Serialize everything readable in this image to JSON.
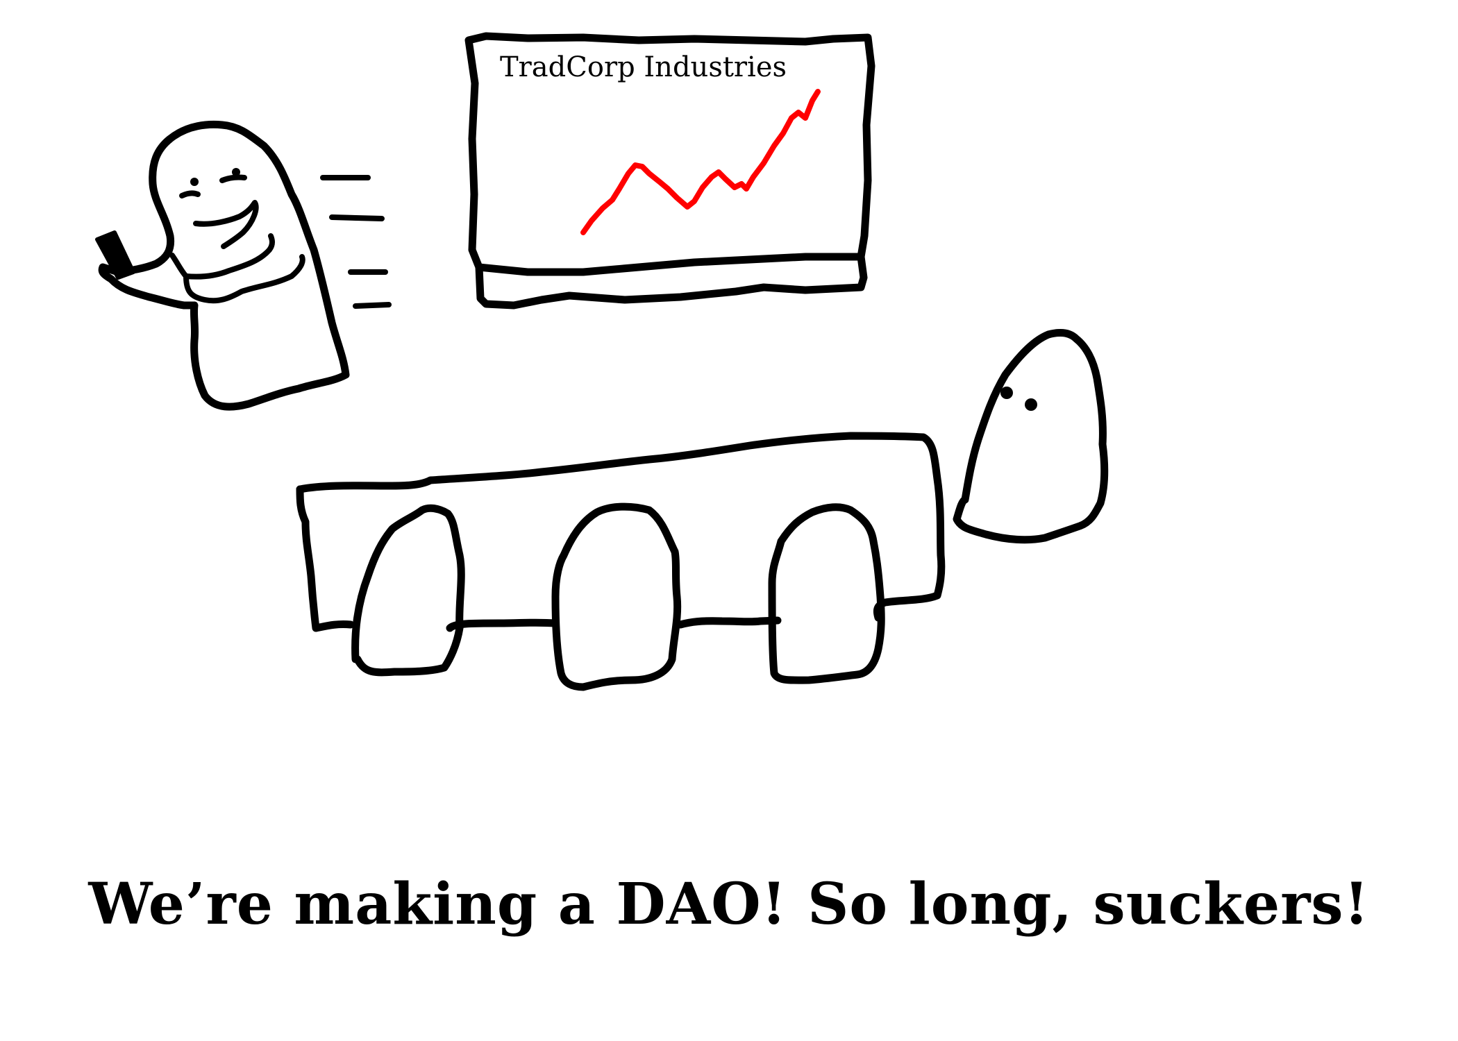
{
  "screen": {
    "title": "TradCorp Industries",
    "trend_line_color": "#ff0000"
  },
  "caption": {
    "text": "We’re making a DAO! So long, suckers!"
  },
  "colors": {
    "ink": "#000000",
    "background": "#ffffff"
  }
}
